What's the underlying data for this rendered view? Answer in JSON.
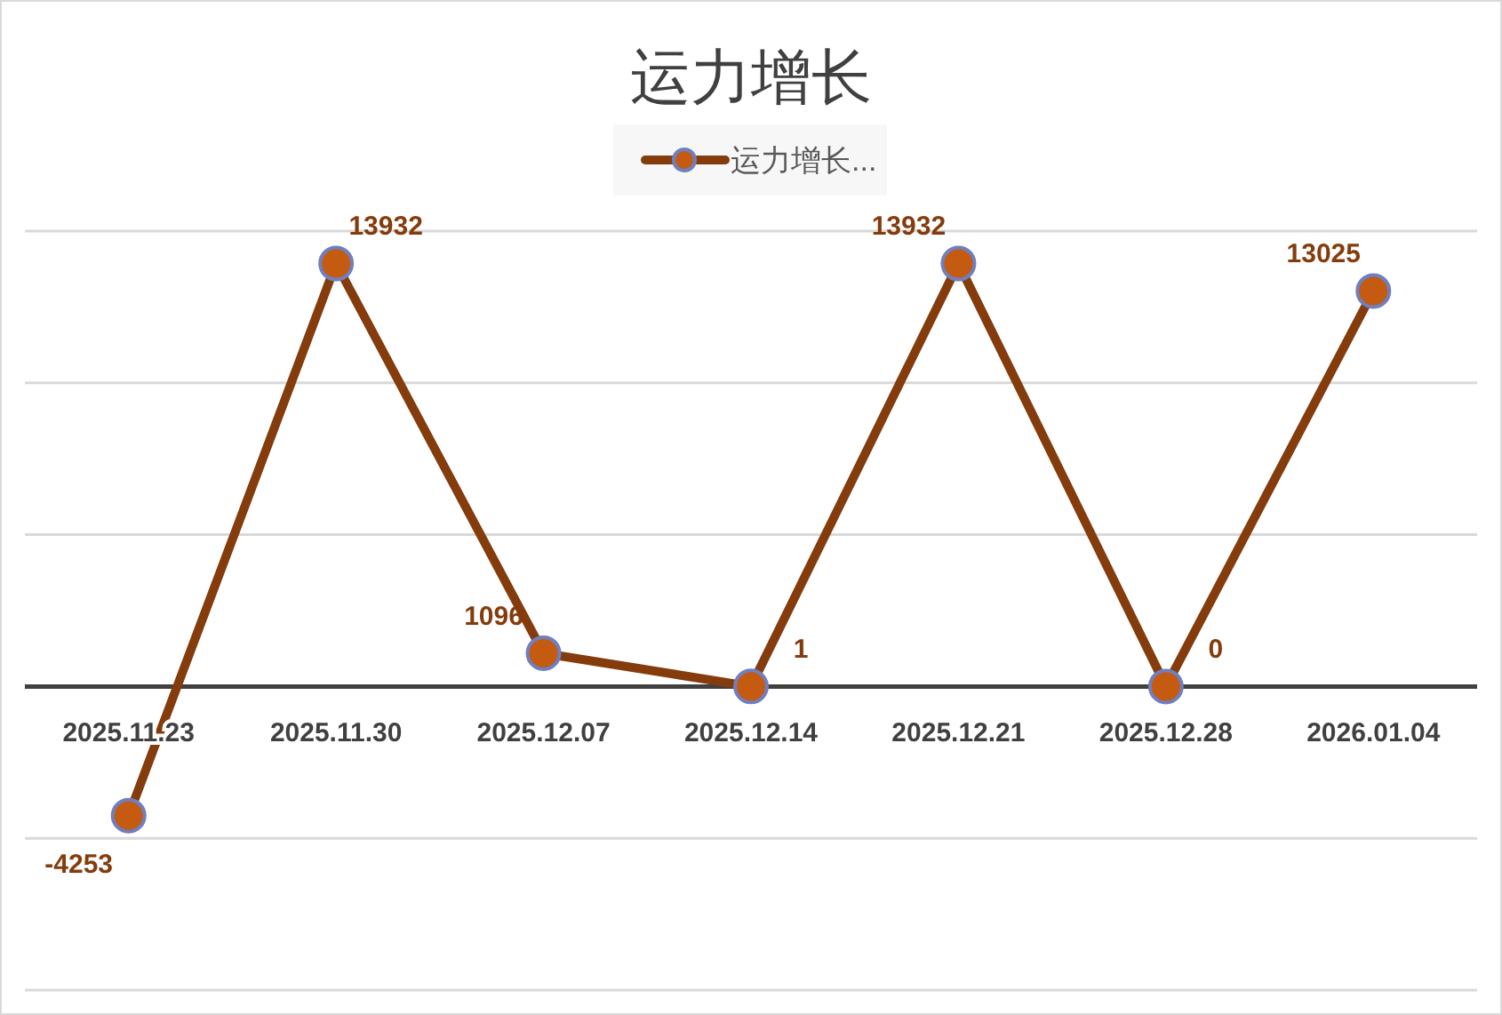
{
  "chart_data": {
    "type": "line",
    "title": "运力增长",
    "categories": [
      "2025.11.23",
      "2025.11.30",
      "2025.12.07",
      "2025.12.14",
      "2025.12.21",
      "2025.12.28",
      "2026.01.04"
    ],
    "series": [
      {
        "name": "运力增长...",
        "color": "#843c0c",
        "values": [
          -4253,
          13932,
          1096,
          1,
          13932,
          0,
          13025
        ]
      }
    ],
    "ylim": [
      -10000,
      15000
    ],
    "yticks": [
      {
        "value": -10000,
        "label": null
      },
      {
        "value": -5000,
        "label": null
      },
      {
        "value": 0,
        "label": null
      },
      {
        "value": 5000,
        "label": null
      },
      {
        "value": 10000,
        "label": null
      },
      {
        "value": 15000,
        "label": null
      }
    ],
    "grid": "y",
    "legend": "top",
    "marker": "circle",
    "data_labels": true
  }
}
